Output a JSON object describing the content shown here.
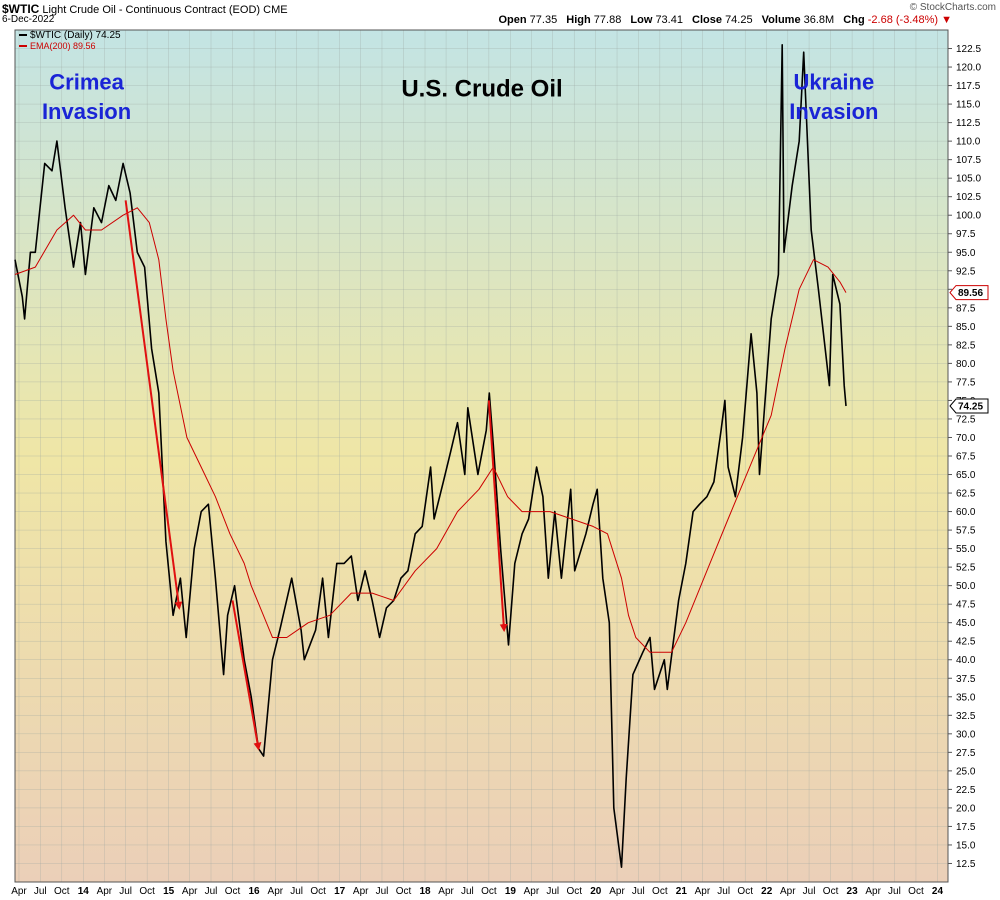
{
  "header": {
    "symbol": "$WTIC",
    "description": "Light Crude Oil - Continuous Contract (EOD)",
    "exchange": "CME",
    "date": "6-Dec-2022",
    "brand": "© StockCharts.com",
    "open_label": "Open",
    "open": "77.35",
    "high_label": "High",
    "high": "77.88",
    "low_label": "Low",
    "low": "73.41",
    "close_label": "Close",
    "close": "74.25",
    "volume_label": "Volume",
    "volume": "36.8M",
    "chg_label": "Chg",
    "chg": "-2.68 (-3.48%)"
  },
  "colors": {
    "price": "#000000",
    "ema": "#cc0000",
    "arrow": "#e01010",
    "annotation": "#1a24d6",
    "bg_top": "#c3e4e4",
    "bg_mid": "#efe6a6",
    "bg_bottom": "#ebcfb8"
  },
  "chart_data": {
    "type": "line",
    "title": "U.S. Crude Oil",
    "ylim": [
      10,
      125
    ],
    "y_scale": "linear",
    "grid": true,
    "legend_position": "top-left",
    "legend": [
      {
        "label": "$WTIC (Daily) 74.25",
        "color": "#000000"
      },
      {
        "label": "EMA(200) 89.56",
        "color": "#cc0000"
      }
    ],
    "price_tag": "74.25",
    "ema_tag": "89.56",
    "y_ticks": [
      "12.5",
      "15.0",
      "17.5",
      "20.0",
      "22.5",
      "25.0",
      "27.5",
      "30.0",
      "32.5",
      "35.0",
      "37.5",
      "40.0",
      "42.5",
      "45.0",
      "47.5",
      "50.0",
      "52.5",
      "55.0",
      "57.5",
      "60.0",
      "62.5",
      "65.0",
      "67.5",
      "70.0",
      "72.5",
      "75.0",
      "77.5",
      "80.0",
      "82.5",
      "85.0",
      "87.5",
      "90.0",
      "92.5",
      "95.0",
      "97.5",
      "100.0",
      "102.5",
      "105.0",
      "107.5",
      "110.0",
      "112.5",
      "115.0",
      "117.5",
      "120.0",
      "122.5"
    ],
    "x_ticks": [
      {
        "label": "Apr",
        "date": "2013-04"
      },
      {
        "label": "Jul",
        "date": "2013-07"
      },
      {
        "label": "Oct",
        "date": "2013-10"
      },
      {
        "label": "14",
        "date": "2014-01"
      },
      {
        "label": "Apr",
        "date": "2014-04"
      },
      {
        "label": "Jul",
        "date": "2014-07"
      },
      {
        "label": "Oct",
        "date": "2014-10"
      },
      {
        "label": "15",
        "date": "2015-01"
      },
      {
        "label": "Apr",
        "date": "2015-04"
      },
      {
        "label": "Jul",
        "date": "2015-07"
      },
      {
        "label": "Oct",
        "date": "2015-10"
      },
      {
        "label": "16",
        "date": "2016-01"
      },
      {
        "label": "Apr",
        "date": "2016-04"
      },
      {
        "label": "Jul",
        "date": "2016-07"
      },
      {
        "label": "Oct",
        "date": "2016-10"
      },
      {
        "label": "17",
        "date": "2017-01"
      },
      {
        "label": "Apr",
        "date": "2017-04"
      },
      {
        "label": "Jul",
        "date": "2017-07"
      },
      {
        "label": "Oct",
        "date": "2017-10"
      },
      {
        "label": "18",
        "date": "2018-01"
      },
      {
        "label": "Apr",
        "date": "2018-04"
      },
      {
        "label": "Jul",
        "date": "2018-07"
      },
      {
        "label": "Oct",
        "date": "2018-10"
      },
      {
        "label": "19",
        "date": "2019-01"
      },
      {
        "label": "Apr",
        "date": "2019-04"
      },
      {
        "label": "Jul",
        "date": "2019-07"
      },
      {
        "label": "Oct",
        "date": "2019-10"
      },
      {
        "label": "20",
        "date": "2020-01"
      },
      {
        "label": "Apr",
        "date": "2020-04"
      },
      {
        "label": "Jul",
        "date": "2020-07"
      },
      {
        "label": "Oct",
        "date": "2020-10"
      },
      {
        "label": "21",
        "date": "2021-01"
      },
      {
        "label": "Apr",
        "date": "2021-04"
      },
      {
        "label": "Jul",
        "date": "2021-07"
      },
      {
        "label": "Oct",
        "date": "2021-10"
      },
      {
        "label": "22",
        "date": "2022-01"
      },
      {
        "label": "Apr",
        "date": "2022-04"
      },
      {
        "label": "Jul",
        "date": "2022-07"
      },
      {
        "label": "Oct",
        "date": "2022-10"
      },
      {
        "label": "23",
        "date": "2023-01"
      },
      {
        "label": "Apr",
        "date": "2023-04"
      },
      {
        "label": "Jul",
        "date": "2023-07"
      },
      {
        "label": "Oct",
        "date": "2023-10"
      },
      {
        "label": "24",
        "date": "2024-01"
      }
    ],
    "x_range": [
      "2013-03-15",
      "2024-02-15"
    ],
    "series": [
      {
        "name": "$WTIC (Daily)",
        "points": [
          [
            "2013-03-15",
            94
          ],
          [
            "2013-04-15",
            89
          ],
          [
            "2013-04-25",
            86
          ],
          [
            "2013-05-20",
            95
          ],
          [
            "2013-06-10",
            95
          ],
          [
            "2013-07-20",
            107
          ],
          [
            "2013-08-20",
            106
          ],
          [
            "2013-09-10",
            110
          ],
          [
            "2013-10-15",
            101
          ],
          [
            "2013-11-20",
            93
          ],
          [
            "2013-12-20",
            99
          ],
          [
            "2014-01-10",
            92
          ],
          [
            "2014-02-15",
            101
          ],
          [
            "2014-03-20",
            99
          ],
          [
            "2014-04-20",
            104
          ],
          [
            "2014-05-20",
            102
          ],
          [
            "2014-06-20",
            107
          ],
          [
            "2014-07-20",
            103
          ],
          [
            "2014-08-20",
            95
          ],
          [
            "2014-09-20",
            93
          ],
          [
            "2014-10-20",
            82
          ],
          [
            "2014-11-20",
            76
          ],
          [
            "2014-12-20",
            56
          ],
          [
            "2015-01-20",
            46
          ],
          [
            "2015-02-20",
            51
          ],
          [
            "2015-03-17",
            43
          ],
          [
            "2015-04-20",
            55
          ],
          [
            "2015-05-20",
            60
          ],
          [
            "2015-06-20",
            61
          ],
          [
            "2015-07-20",
            51
          ],
          [
            "2015-08-24",
            38
          ],
          [
            "2015-09-10",
            46
          ],
          [
            "2015-10-10",
            50
          ],
          [
            "2015-11-20",
            40
          ],
          [
            "2015-12-20",
            35
          ],
          [
            "2016-01-20",
            28
          ],
          [
            "2016-02-11",
            27
          ],
          [
            "2016-03-20",
            40
          ],
          [
            "2016-04-20",
            44
          ],
          [
            "2016-06-10",
            51
          ],
          [
            "2016-07-20",
            44
          ],
          [
            "2016-08-03",
            40
          ],
          [
            "2016-09-20",
            44
          ],
          [
            "2016-10-20",
            51
          ],
          [
            "2016-11-14",
            43
          ],
          [
            "2016-12-20",
            53
          ],
          [
            "2017-01-20",
            53
          ],
          [
            "2017-02-20",
            54
          ],
          [
            "2017-03-20",
            48
          ],
          [
            "2017-04-20",
            52
          ],
          [
            "2017-05-20",
            48
          ],
          [
            "2017-06-21",
            43
          ],
          [
            "2017-07-20",
            47
          ],
          [
            "2017-08-20",
            48
          ],
          [
            "2017-09-20",
            51
          ],
          [
            "2017-10-20",
            52
          ],
          [
            "2017-11-20",
            57
          ],
          [
            "2017-12-20",
            58
          ],
          [
            "2018-01-25",
            66
          ],
          [
            "2018-02-09",
            59
          ],
          [
            "2018-03-20",
            64
          ],
          [
            "2018-04-20",
            68
          ],
          [
            "2018-05-20",
            72
          ],
          [
            "2018-06-20",
            65
          ],
          [
            "2018-07-03",
            74
          ],
          [
            "2018-08-15",
            65
          ],
          [
            "2018-09-20",
            71
          ],
          [
            "2018-10-03",
            76
          ],
          [
            "2018-10-20",
            69
          ],
          [
            "2018-11-20",
            55
          ],
          [
            "2018-12-24",
            42
          ],
          [
            "2019-01-20",
            53
          ],
          [
            "2019-02-20",
            57
          ],
          [
            "2019-03-20",
            59
          ],
          [
            "2019-04-23",
            66
          ],
          [
            "2019-05-20",
            62
          ],
          [
            "2019-06-12",
            51
          ],
          [
            "2019-07-10",
            60
          ],
          [
            "2019-08-07",
            51
          ],
          [
            "2019-09-16",
            63
          ],
          [
            "2019-10-03",
            52
          ],
          [
            "2019-11-20",
            57
          ],
          [
            "2019-12-20",
            61
          ],
          [
            "2020-01-07",
            63
          ],
          [
            "2020-01-31",
            51
          ],
          [
            "2020-02-28",
            45
          ],
          [
            "2020-03-18",
            20
          ],
          [
            "2020-04-20",
            12
          ],
          [
            "2020-05-10",
            24
          ],
          [
            "2020-06-08",
            38
          ],
          [
            "2020-07-20",
            41
          ],
          [
            "2020-08-20",
            43
          ],
          [
            "2020-09-08",
            36
          ],
          [
            "2020-10-20",
            40
          ],
          [
            "2020-11-02",
            36
          ],
          [
            "2020-12-20",
            48
          ],
          [
            "2021-01-20",
            53
          ],
          [
            "2021-02-20",
            60
          ],
          [
            "2021-03-20",
            61
          ],
          [
            "2021-04-20",
            62
          ],
          [
            "2021-05-20",
            64
          ],
          [
            "2021-06-20",
            71
          ],
          [
            "2021-07-06",
            75
          ],
          [
            "2021-07-20",
            66
          ],
          [
            "2021-08-20",
            62
          ],
          [
            "2021-09-20",
            70
          ],
          [
            "2021-10-26",
            84
          ],
          [
            "2021-11-20",
            76
          ],
          [
            "2021-12-01",
            65
          ],
          [
            "2022-01-20",
            86
          ],
          [
            "2022-02-20",
            92
          ],
          [
            "2022-03-08",
            123
          ],
          [
            "2022-03-16",
            95
          ],
          [
            "2022-04-20",
            104
          ],
          [
            "2022-05-20",
            110
          ],
          [
            "2022-06-08",
            122
          ],
          [
            "2022-07-10",
            98
          ],
          [
            "2022-08-10",
            90
          ],
          [
            "2022-09-26",
            77
          ],
          [
            "2022-10-10",
            92
          ],
          [
            "2022-11-10",
            88
          ],
          [
            "2022-11-28",
            77
          ],
          [
            "2022-12-06",
            74.25
          ]
        ]
      },
      {
        "name": "EMA(200)",
        "points": [
          [
            "2013-03-15",
            92
          ],
          [
            "2013-06-10",
            93
          ],
          [
            "2013-09-10",
            98
          ],
          [
            "2013-11-20",
            100
          ],
          [
            "2014-01-10",
            98
          ],
          [
            "2014-03-20",
            98
          ],
          [
            "2014-06-20",
            100
          ],
          [
            "2014-08-20",
            101
          ],
          [
            "2014-10-10",
            99
          ],
          [
            "2014-11-20",
            94
          ],
          [
            "2014-12-20",
            86
          ],
          [
            "2015-01-20",
            79
          ],
          [
            "2015-03-20",
            70
          ],
          [
            "2015-05-20",
            66
          ],
          [
            "2015-07-20",
            62
          ],
          [
            "2015-09-20",
            57
          ],
          [
            "2015-11-20",
            53
          ],
          [
            "2015-12-20",
            50
          ],
          [
            "2016-02-10",
            46
          ],
          [
            "2016-03-20",
            43
          ],
          [
            "2016-05-20",
            43
          ],
          [
            "2016-08-20",
            45
          ],
          [
            "2016-11-20",
            46
          ],
          [
            "2017-02-20",
            49
          ],
          [
            "2017-05-20",
            49
          ],
          [
            "2017-08-20",
            48
          ],
          [
            "2017-11-20",
            52
          ],
          [
            "2018-02-20",
            55
          ],
          [
            "2018-05-20",
            60
          ],
          [
            "2018-08-20",
            63
          ],
          [
            "2018-10-20",
            66
          ],
          [
            "2018-12-20",
            62
          ],
          [
            "2019-02-20",
            60
          ],
          [
            "2019-04-20",
            60
          ],
          [
            "2019-06-20",
            60
          ],
          [
            "2019-09-20",
            59
          ],
          [
            "2019-12-20",
            58
          ],
          [
            "2020-02-20",
            57
          ],
          [
            "2020-04-20",
            51
          ],
          [
            "2020-05-20",
            46
          ],
          [
            "2020-06-20",
            43
          ],
          [
            "2020-08-20",
            41
          ],
          [
            "2020-11-20",
            41
          ],
          [
            "2021-01-20",
            45
          ],
          [
            "2021-04-20",
            52
          ],
          [
            "2021-07-20",
            59
          ],
          [
            "2021-10-20",
            66
          ],
          [
            "2022-01-20",
            73
          ],
          [
            "2022-03-20",
            82
          ],
          [
            "2022-05-20",
            90
          ],
          [
            "2022-07-20",
            94
          ],
          [
            "2022-09-20",
            93
          ],
          [
            "2022-11-10",
            91
          ],
          [
            "2022-12-06",
            89.56
          ]
        ]
      }
    ],
    "arrows": [
      {
        "from": [
          "2014-07-01",
          102
        ],
        "to": [
          "2015-02-15",
          47
        ]
      },
      {
        "from": [
          "2015-10-01",
          48
        ],
        "to": [
          "2016-01-20",
          28
        ]
      },
      {
        "from": [
          "2018-10-01",
          75
        ],
        "to": [
          "2018-12-05",
          44
        ]
      }
    ],
    "annotations": [
      {
        "text": "Crimea",
        "date": "2014-01-15",
        "value": 117
      },
      {
        "text": "Invasion",
        "date": "2014-01-15",
        "value": 113
      },
      {
        "text": "Ukraine",
        "date": "2022-10-15",
        "value": 117
      },
      {
        "text": "Invasion",
        "date": "2022-10-15",
        "value": 113
      }
    ]
  }
}
